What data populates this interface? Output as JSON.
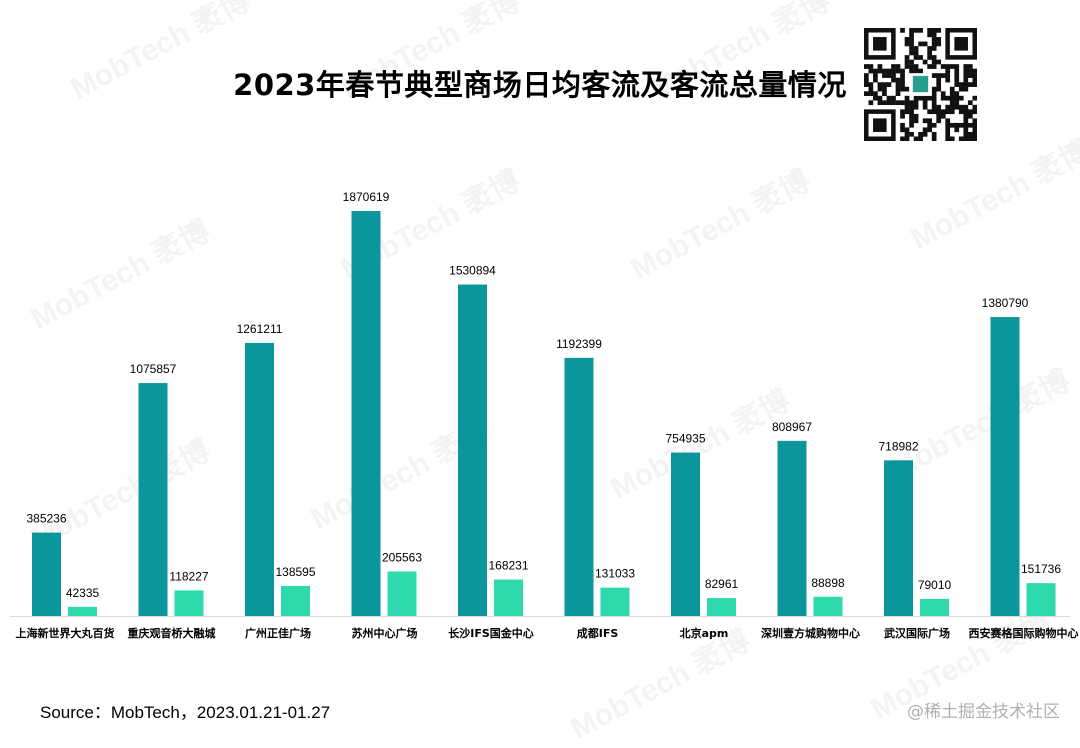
{
  "chart_data": {
    "type": "bar",
    "title": "2023年春节典型商场日均客流及客流总量情况",
    "categories": [
      "上海新世界大丸百货",
      "重庆观音桥大融城",
      "广州正佳广场",
      "苏州中心广场",
      "长沙IFS国金中心",
      "成都IFS",
      "北京apm",
      "深圳壹方城购物中心",
      "武汉国际广场",
      "西安赛格国际购物中心"
    ],
    "series": [
      {
        "values": [
          385236,
          1075857,
          1261211,
          1870619,
          1530894,
          1192399,
          754935,
          808967,
          718982,
          1380790
        ],
        "color": "#0a969a"
      },
      {
        "values": [
          42335,
          118227,
          138595,
          205563,
          168231,
          131033,
          82961,
          88898,
          79010,
          151736
        ],
        "color": "#2ed9ae"
      }
    ],
    "ylim": [
      0,
      2000000
    ],
    "grid": false,
    "legend": "none",
    "xlabel": "",
    "ylabel": ""
  },
  "footer": {
    "source": "Source：MobTech，2023.01.21-01.27",
    "credit": "@稀土掘金技术社区"
  },
  "watermark": "MobTech 袤博",
  "qr_icon": "qr-code-icon"
}
